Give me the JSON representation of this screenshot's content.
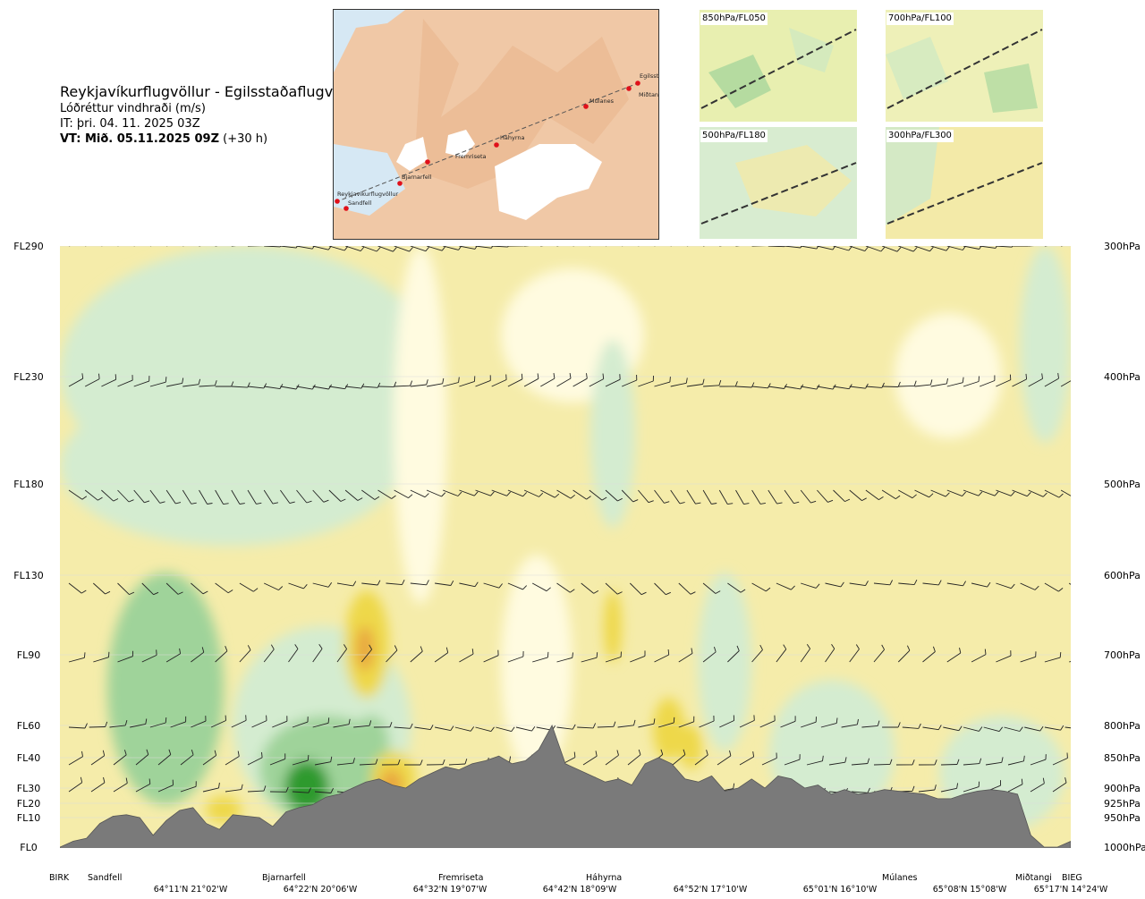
{
  "header": {
    "route": "Reykjavíkurflugvöllur - Egilsstaðaflugvöllur",
    "variable": "Lóðréttur vindhraði (m/s)",
    "issue_time": "IT: þri. 04. 11. 2025 03Z",
    "valid_time_bold": "VT: Mið. 05.11.2025 09Z",
    "valid_time_rest": " (+30 h)"
  },
  "map": {
    "stations": [
      "Reykjavíkurflugvöllur",
      "Sandfell",
      "Bjarnarfell",
      "Fremriseta",
      "Háhyrna",
      "Múlanes",
      "Miðtangi",
      "Egilsstaðir"
    ],
    "colors": {
      "sea": "#d6e8f4",
      "land": "#f1c9a8",
      "glacier": "#ffffff",
      "route": "#555555",
      "station": "#e0101a"
    }
  },
  "mini_maps": [
    {
      "label": "850hPa/FL050"
    },
    {
      "label": "700hPa/FL100"
    },
    {
      "label": "500hPa/FL180"
    },
    {
      "label": "300hPa/FL300"
    }
  ],
  "chart_data": {
    "type": "heatmap",
    "title": "Lóðréttur vindhraði (m/s)",
    "description_layers": [
      "vertical wind speed shading",
      "wind barbs",
      "terrain profile"
    ],
    "y_levels": [
      {
        "fl": "FL290",
        "hpa": "300hPa"
      },
      {
        "fl": "FL230",
        "hpa": "400hPa"
      },
      {
        "fl": "FL180",
        "hpa": "500hPa"
      },
      {
        "fl": "FL130",
        "hpa": "600hPa"
      },
      {
        "fl": "FL90",
        "hpa": "700hPa"
      },
      {
        "fl": "FL60",
        "hpa": "800hPa"
      },
      {
        "fl": "FL40",
        "hpa": "850hPa"
      },
      {
        "fl": "FL30",
        "hpa": "900hPa"
      },
      {
        "fl": "FL20",
        "hpa": "925hPa"
      },
      {
        "fl": "FL10",
        "hpa": "950hPa"
      },
      {
        "fl": "FL0",
        "hpa": "1000hPa"
      }
    ],
    "places": [
      "BIRK",
      "Sandfell",
      "Bjarnarfell",
      "Fremriseta",
      "Háhyrna",
      "Múlanes",
      "Miðtangi",
      "BIEG"
    ],
    "coordinates": [
      "64°11'N 21°02'W",
      "64°22'N 20°06'W",
      "64°32'N 19°07'W",
      "64°42'N 18°09'W",
      "64°52'N 17°10'W",
      "65°01'N 16°10'W",
      "65°08'N 15°08'W",
      "65°17'N 14°24'W"
    ],
    "terrain_profile_ft": [
      0,
      200,
      300,
      800,
      1100,
      1200,
      1000,
      400,
      900,
      1500,
      1700,
      800,
      600,
      1200,
      1100,
      1000,
      700,
      1400,
      1700,
      1900,
      2400,
      2600,
      3000,
      3200,
      3300,
      3100,
      3000,
      3300,
      3500,
      3700,
      3600,
      3800,
      3900,
      4100,
      3800,
      3900,
      4500,
      6000,
      3800,
      3600,
      3400,
      3200,
      3300,
      3100,
      3800,
      4000,
      3800,
      3300,
      3200,
      3400,
      2800,
      3000,
      3300,
      3000,
      3400,
      3300,
      3000,
      3100,
      2600,
      2900,
      2600,
      2700,
      2900,
      2800,
      2700,
      2600,
      2300,
      2300,
      2600,
      2800,
      2900,
      2800,
      2600,
      400,
      0,
      0,
      200
    ],
    "colors": {
      "strong_down": "#2e9a2e",
      "down": "#9fd39a",
      "weak_down": "#d4ecd0",
      "near_zero": "#fffbe0",
      "weak_up": "#f5ecaa",
      "up": "#eed84a",
      "strong_up": "#e8a540",
      "terrain": "#7a7a7a"
    }
  }
}
